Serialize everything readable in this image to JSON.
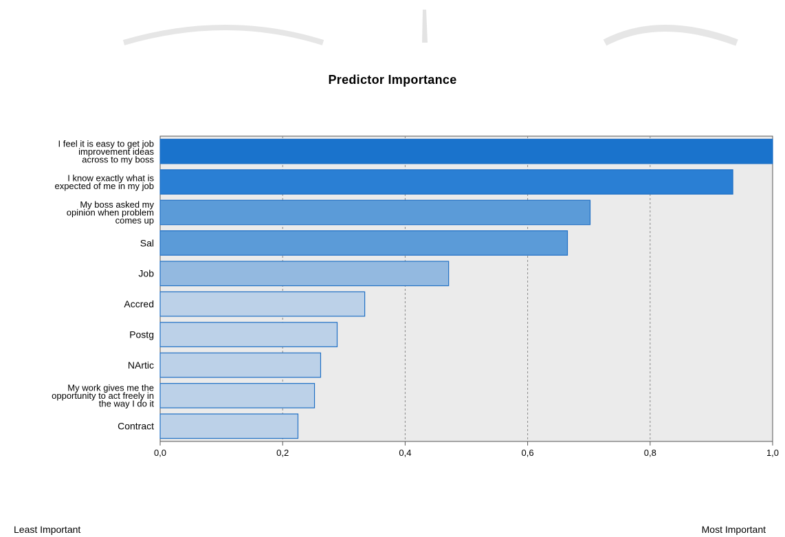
{
  "chart_data": {
    "type": "bar",
    "orientation": "horizontal",
    "title": "Predictor Importance",
    "xlabel": "",
    "ylabel": "",
    "xlim": [
      0,
      1.0
    ],
    "x_ticks": [
      "0,0",
      "0,2",
      "0,4",
      "0,6",
      "0,8",
      "1,0"
    ],
    "grid": "vertical dashed",
    "categories": [
      [
        "I feel it is easy to get job",
        "improvement ideas",
        "across to my boss"
      ],
      [
        "I know exactly what is",
        "expected of me in my job"
      ],
      [
        "My boss asked my",
        "opinion when problem",
        "comes up"
      ],
      [
        "Sal"
      ],
      [
        "Job"
      ],
      [
        "Accred"
      ],
      [
        "Postg"
      ],
      [
        "NArtic"
      ],
      [
        "My work gives me the",
        "opportunity to act freely in",
        "the way I do it"
      ],
      [
        "Contract"
      ]
    ],
    "values": [
      1.0,
      0.935,
      0.702,
      0.665,
      0.471,
      0.334,
      0.289,
      0.262,
      0.252,
      0.225
    ],
    "bar_colors": [
      "#1a73cc",
      "#2a7fd4",
      "#5b9bd8",
      "#5b9bd8",
      "#93b9e0",
      "#bcd1e8",
      "#bcd1e8",
      "#bcd1e8",
      "#bcd1e8",
      "#bcd1e8"
    ],
    "bar_border": "#1f6fc4",
    "plot_background": "#ebebeb",
    "legend": {
      "low_label": "Least Important",
      "high_label": "Most Important"
    }
  }
}
